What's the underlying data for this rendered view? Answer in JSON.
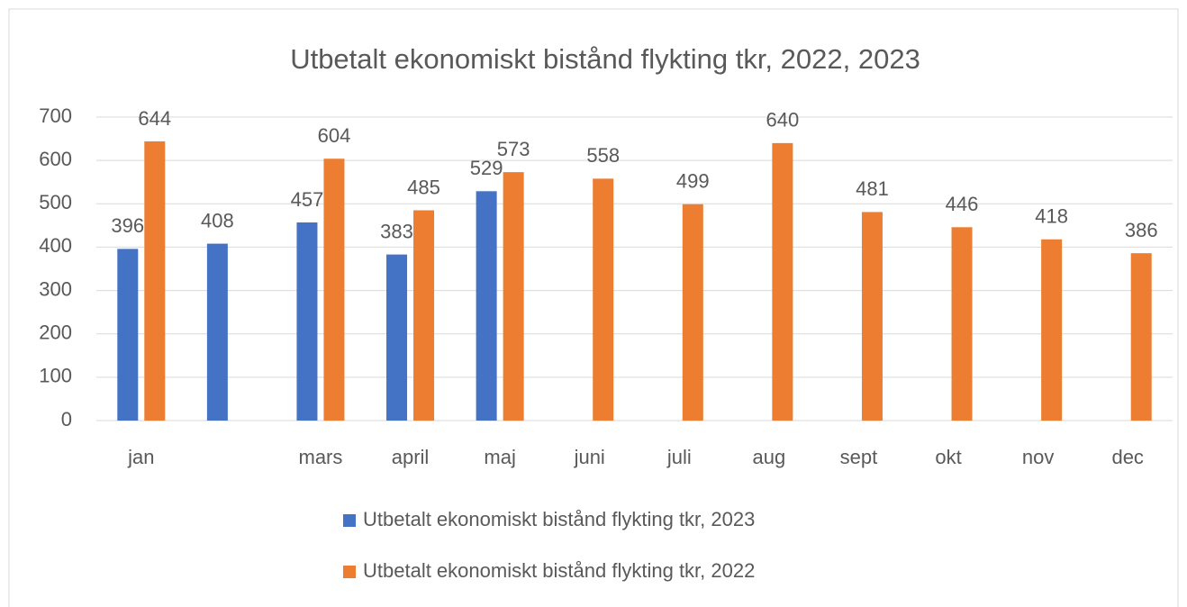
{
  "chart_data": {
    "type": "bar",
    "title": "Utbetalt ekonomiskt bistånd flykting tkr, 2022, 2023",
    "categories": [
      "jan",
      null,
      "mars",
      "april",
      "maj",
      "juni",
      "juli",
      "aug",
      "sept",
      "okt",
      "nov",
      "dec"
    ],
    "series": [
      {
        "name": "Utbetalt ekonomiskt bistånd flykting tkr, 2023",
        "color": "#4472c4",
        "values": [
          396,
          408,
          457,
          383,
          529,
          null,
          null,
          null,
          null,
          null,
          null,
          null
        ]
      },
      {
        "name": "Utbetalt ekonomiskt bistånd flykting tkr, 2022",
        "color": "#ed7d31",
        "values": [
          644,
          null,
          604,
          485,
          573,
          558,
          499,
          640,
          481,
          446,
          418,
          386
        ]
      }
    ],
    "ylim": [
      0,
      700
    ],
    "yticks": [
      0,
      100,
      200,
      300,
      400,
      500,
      600,
      700
    ],
    "grid": true
  }
}
